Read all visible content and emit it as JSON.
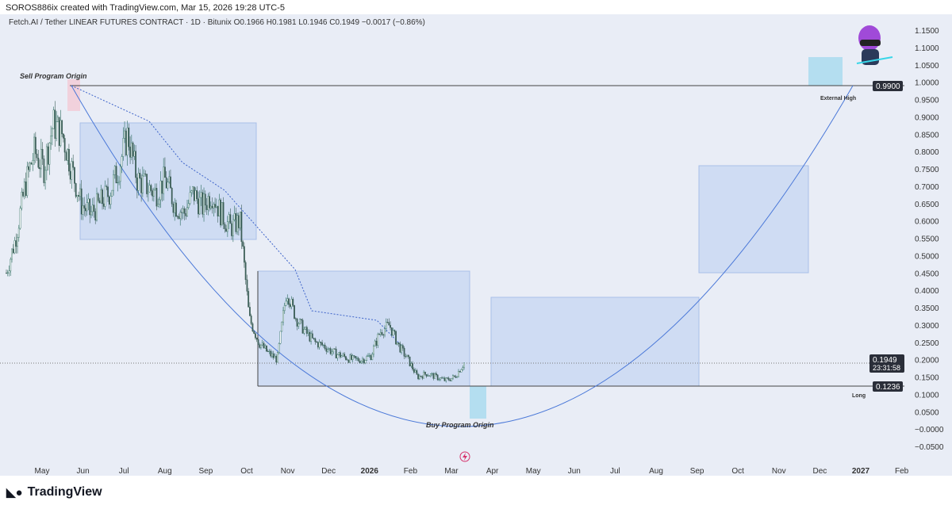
{
  "header": {
    "credit": "SOROS886ix created with TradingView.com, Mar 15, 2026 19:28 UTC-5"
  },
  "symbol_line": "Fetch.AI / Tether LINEAR FUTURES CONTRACT · 1D · Bitunix  O0.1966  H0.1981  L0.1946  C0.1949  −0.0017 (−0.86%)",
  "annotations": {
    "sell": "Sell Program Origin",
    "buy": "Buy Program Origin",
    "external_high": "External High",
    "long": "Long"
  },
  "price_tags": {
    "high": "0.9900",
    "last": "0.1949",
    "countdown": "23:31:58",
    "long": "0.1236"
  },
  "colors": {
    "up": "#2a6b5c",
    "down": "#3d5f58",
    "box": "#c8d7f2",
    "curve": "#4a78d8"
  },
  "logo": "TradingView",
  "chart_data": {
    "type": "candlestick",
    "title": "Fetch.AI / Tether LINEAR FUTURES CONTRACT · 1D · Bitunix",
    "y_ticks": [
      "1.1500",
      "1.1000",
      "1.0500",
      "1.0000",
      "0.9500",
      "0.9000",
      "0.8500",
      "0.8000",
      "0.7500",
      "0.7000",
      "0.6500",
      "0.6000",
      "0.5500",
      "0.5000",
      "0.4500",
      "0.4000",
      "0.3500",
      "0.3000",
      "0.2500",
      "0.2000",
      "0.1500",
      "0.1000",
      "0.0500",
      "−0.0000",
      "−0.0500"
    ],
    "ylim": [
      -0.05,
      1.15
    ],
    "x_ticks": [
      "May",
      "Jun",
      "Jul",
      "Aug",
      "Sep",
      "Oct",
      "Nov",
      "Dec",
      "2026",
      "Feb",
      "Mar",
      "Apr",
      "May",
      "Jun",
      "Jul",
      "Aug",
      "Sep",
      "Oct",
      "Nov",
      "Dec",
      "2027",
      "Feb"
    ],
    "weekly_closes": [
      0.45,
      0.55,
      0.7,
      0.8,
      0.75,
      0.88,
      0.85,
      0.75,
      0.65,
      0.62,
      0.65,
      0.68,
      0.75,
      0.85,
      0.72,
      0.7,
      0.68,
      0.72,
      0.65,
      0.62,
      0.68,
      0.64,
      0.68,
      0.62,
      0.58,
      0.6,
      0.32,
      0.25,
      0.22,
      0.2,
      0.4,
      0.32,
      0.28,
      0.25,
      0.24,
      0.22,
      0.21,
      0.2,
      0.2,
      0.21,
      0.28,
      0.3,
      0.24,
      0.2,
      0.15,
      0.16,
      0.15,
      0.14,
      0.15,
      0.19
    ],
    "levels": {
      "external_high": 0.99,
      "long": 0.1236,
      "last": 0.1949
    }
  }
}
